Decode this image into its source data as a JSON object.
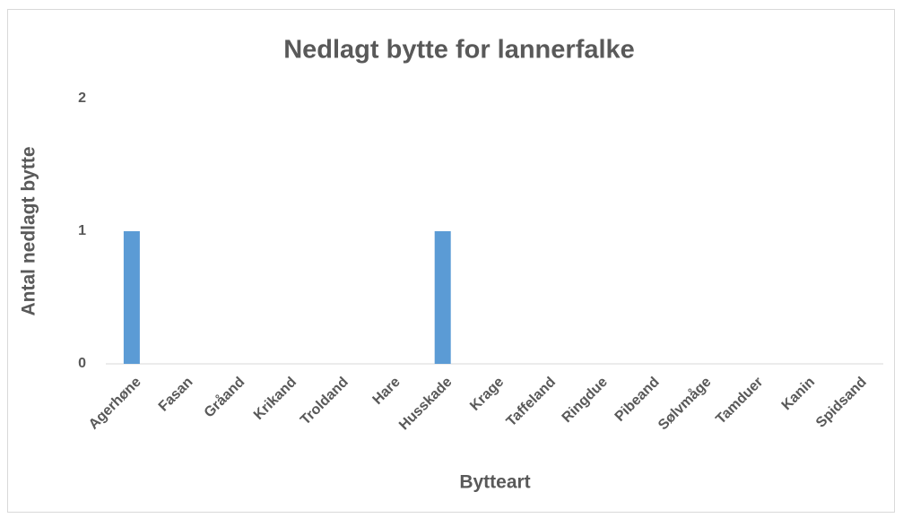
{
  "chart_data": {
    "type": "bar",
    "title": "Nedlagt bytte for lannerfalke",
    "x_label": "Bytteart",
    "y_label": "Antal nedlagt bytte",
    "categories": [
      "Agerhøne",
      "Fasan",
      "Gråand",
      "Krikand",
      "Troldand",
      "Hare",
      "Husskade",
      "Krage",
      "Taffeland",
      "Ringdue",
      "Pibeand",
      "Sølvmåge",
      "Tamduer",
      "Kanin",
      "Spidsand"
    ],
    "values": [
      1,
      0,
      0,
      0,
      0,
      0,
      1,
      0,
      0,
      0,
      0,
      0,
      0,
      0,
      0
    ],
    "color": "#5b9bd5",
    "ylim": [
      0,
      2
    ],
    "yticks": [
      0,
      1,
      2
    ],
    "grid": false
  }
}
